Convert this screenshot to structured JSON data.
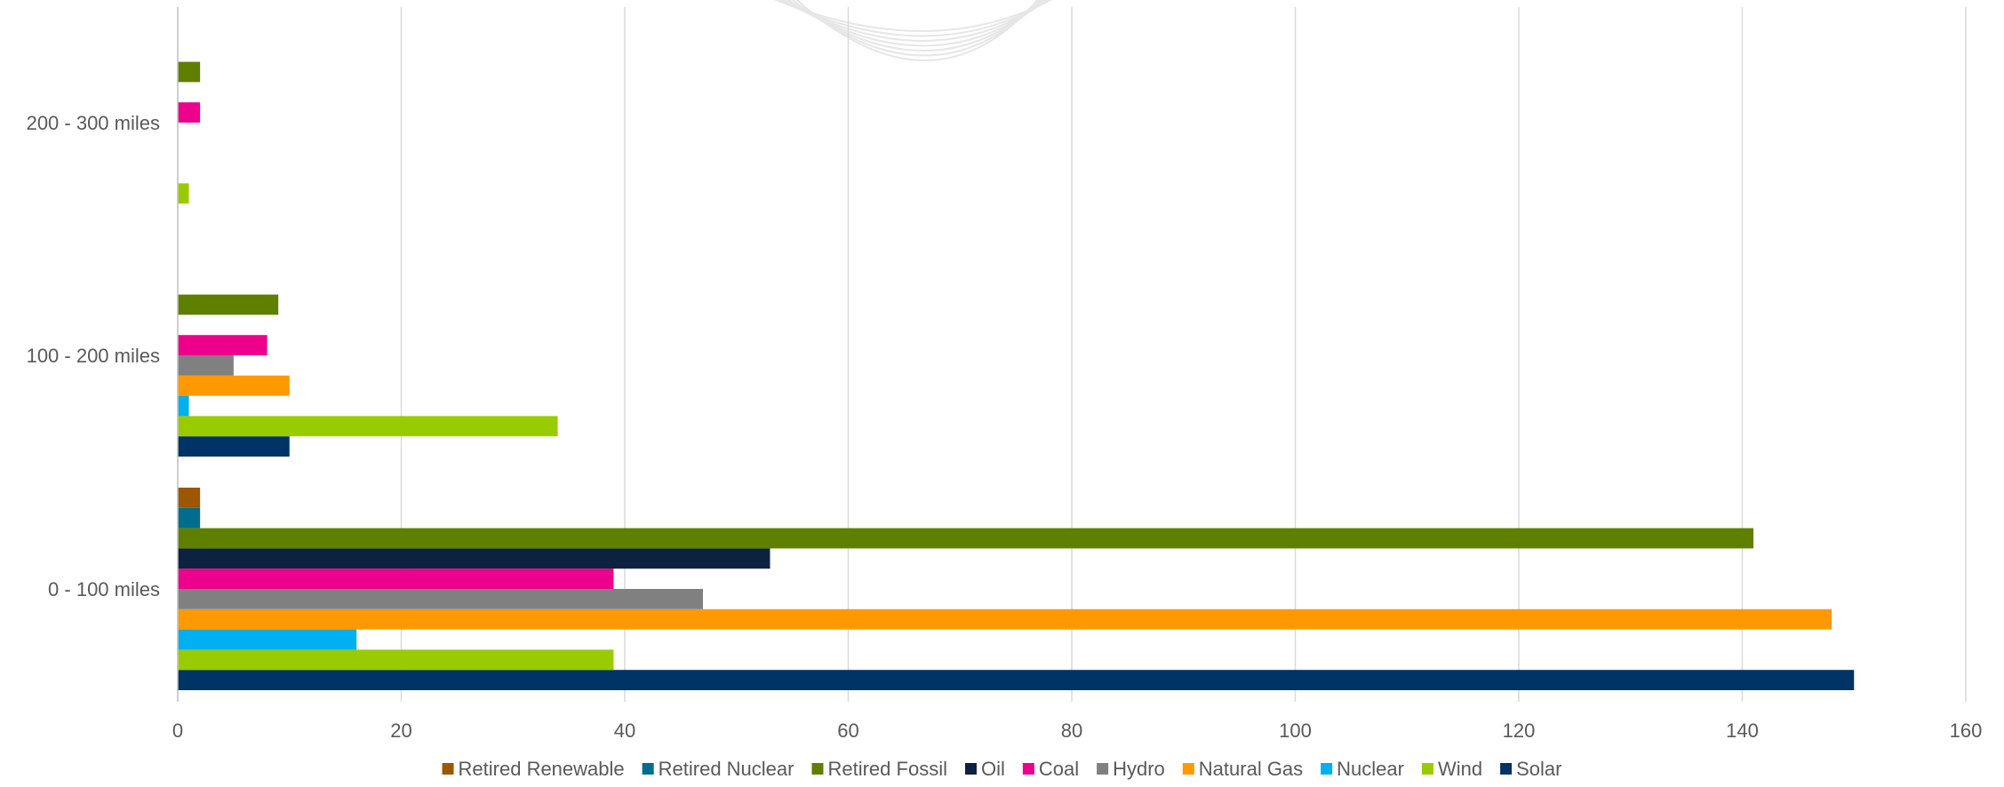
{
  "chart_data": {
    "type": "bar",
    "orientation": "horizontal",
    "categories": [
      "0 - 100 miles",
      "100 - 200 miles",
      "200 - 300 miles"
    ],
    "xlim": [
      0,
      160
    ],
    "xticks": [
      0,
      20,
      40,
      60,
      80,
      100,
      120,
      140,
      160
    ],
    "grid": true,
    "legend_position": "bottom",
    "series": [
      {
        "name": "Solar",
        "color": "#003366",
        "values": [
          150,
          10,
          0
        ]
      },
      {
        "name": "Wind",
        "color": "#99CC00",
        "values": [
          39,
          34,
          1
        ]
      },
      {
        "name": "Nuclear",
        "color": "#00B0F0",
        "values": [
          16,
          1,
          0
        ]
      },
      {
        "name": "Natural Gas",
        "color": "#FF9900",
        "values": [
          148,
          10,
          0
        ]
      },
      {
        "name": "Hydro",
        "color": "#808080",
        "values": [
          47,
          5,
          0
        ]
      },
      {
        "name": "Coal",
        "color": "#EC008C",
        "values": [
          39,
          8,
          2
        ]
      },
      {
        "name": "Oil",
        "color": "#0D2240",
        "values": [
          53,
          0,
          0
        ]
      },
      {
        "name": "Retired Fossil",
        "color": "#5F7F00",
        "values": [
          141,
          9,
          2
        ]
      },
      {
        "name": "Retired Nuclear",
        "color": "#006D8F",
        "values": [
          2,
          0,
          0
        ]
      },
      {
        "name": "Retired Renewable",
        "color": "#9C5700",
        "values": [
          2,
          0,
          0
        ]
      }
    ]
  }
}
